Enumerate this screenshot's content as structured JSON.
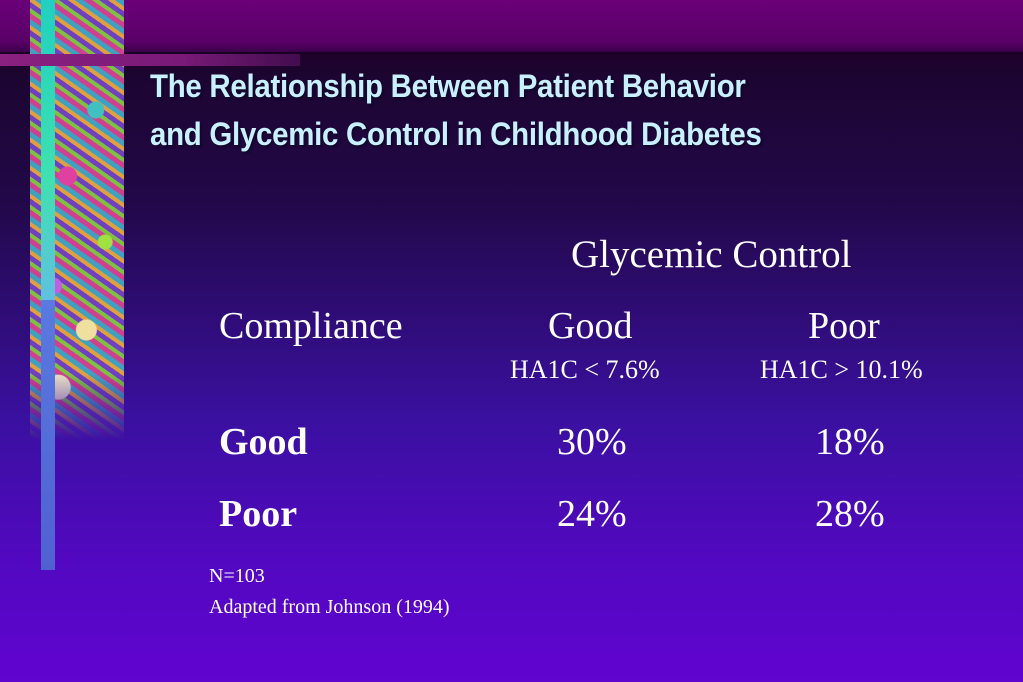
{
  "slide": {
    "title_line1": "The Relationship Between Patient Behavior",
    "title_line2": "and Glycemic Control in Childhood Diabetes"
  },
  "table": {
    "column_group_header": "Glycemic Control",
    "row_header": "Compliance",
    "columns": [
      {
        "label": "Good",
        "sublabel": "HA1C < 7.6%"
      },
      {
        "label": "Poor",
        "sublabel": "HA1C > 10.1%"
      }
    ],
    "rows": [
      {
        "label": "Good",
        "values": [
          "30%",
          "18%"
        ]
      },
      {
        "label": "Poor",
        "values": [
          "24%",
          "28%"
        ]
      }
    ]
  },
  "footnotes": {
    "n": "N=103",
    "source": "Adapted from Johnson (1994)"
  },
  "colors": {
    "title": "#c8f0ff",
    "background_top": "#600070",
    "background_bottom": "#6004d0"
  }
}
